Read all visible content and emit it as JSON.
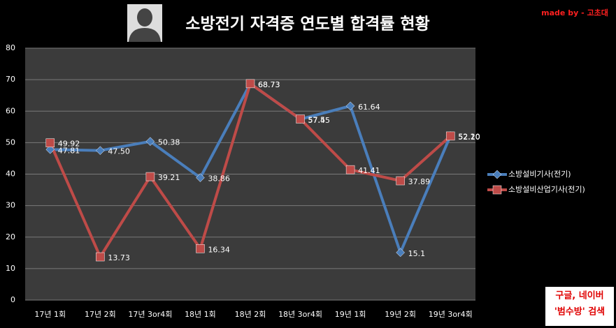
{
  "chart_data": {
    "type": "line",
    "title": "소방전기 자격증 연도별 합격률 현황",
    "credit": "made by - 고초대",
    "note_lines": [
      "구글, 네이버",
      "'범수방' 검색"
    ],
    "categories": [
      "17년 1회",
      "17년 2회",
      "17년 3or4회",
      "18년 1회",
      "18년 2회",
      "18년 3or4회",
      "19년 1회",
      "19년 2회",
      "19년 3or4회"
    ],
    "series": [
      {
        "name": "소방설비기사(전기)",
        "color": "#4a7ebb",
        "marker": "diamond",
        "values": [
          47.81,
          47.5,
          50.38,
          38.86,
          68.73,
          57.45,
          61.64,
          15.1,
          52.2
        ],
        "value_labels": [
          "47.81",
          "47.50",
          "50.38",
          "38.86",
          "68.73",
          "57.45",
          "61.64",
          "15.1",
          "52.20"
        ]
      },
      {
        "name": "소방설비산업기사(전기)",
        "color": "#be4b48",
        "marker": "square",
        "values": [
          49.92,
          13.73,
          39.21,
          16.34,
          68.73,
          57.5,
          41.41,
          37.89,
          52.1
        ],
        "value_labels": [
          "49.92",
          "13.73",
          "39.21",
          "16.34",
          "68.73",
          "57.5",
          "41.41",
          "37.89",
          "52.10"
        ]
      }
    ],
    "ylim": [
      0,
      80
    ],
    "yticks": [
      0,
      10,
      20,
      30,
      40,
      50,
      60,
      70,
      80
    ],
    "grid": true
  }
}
